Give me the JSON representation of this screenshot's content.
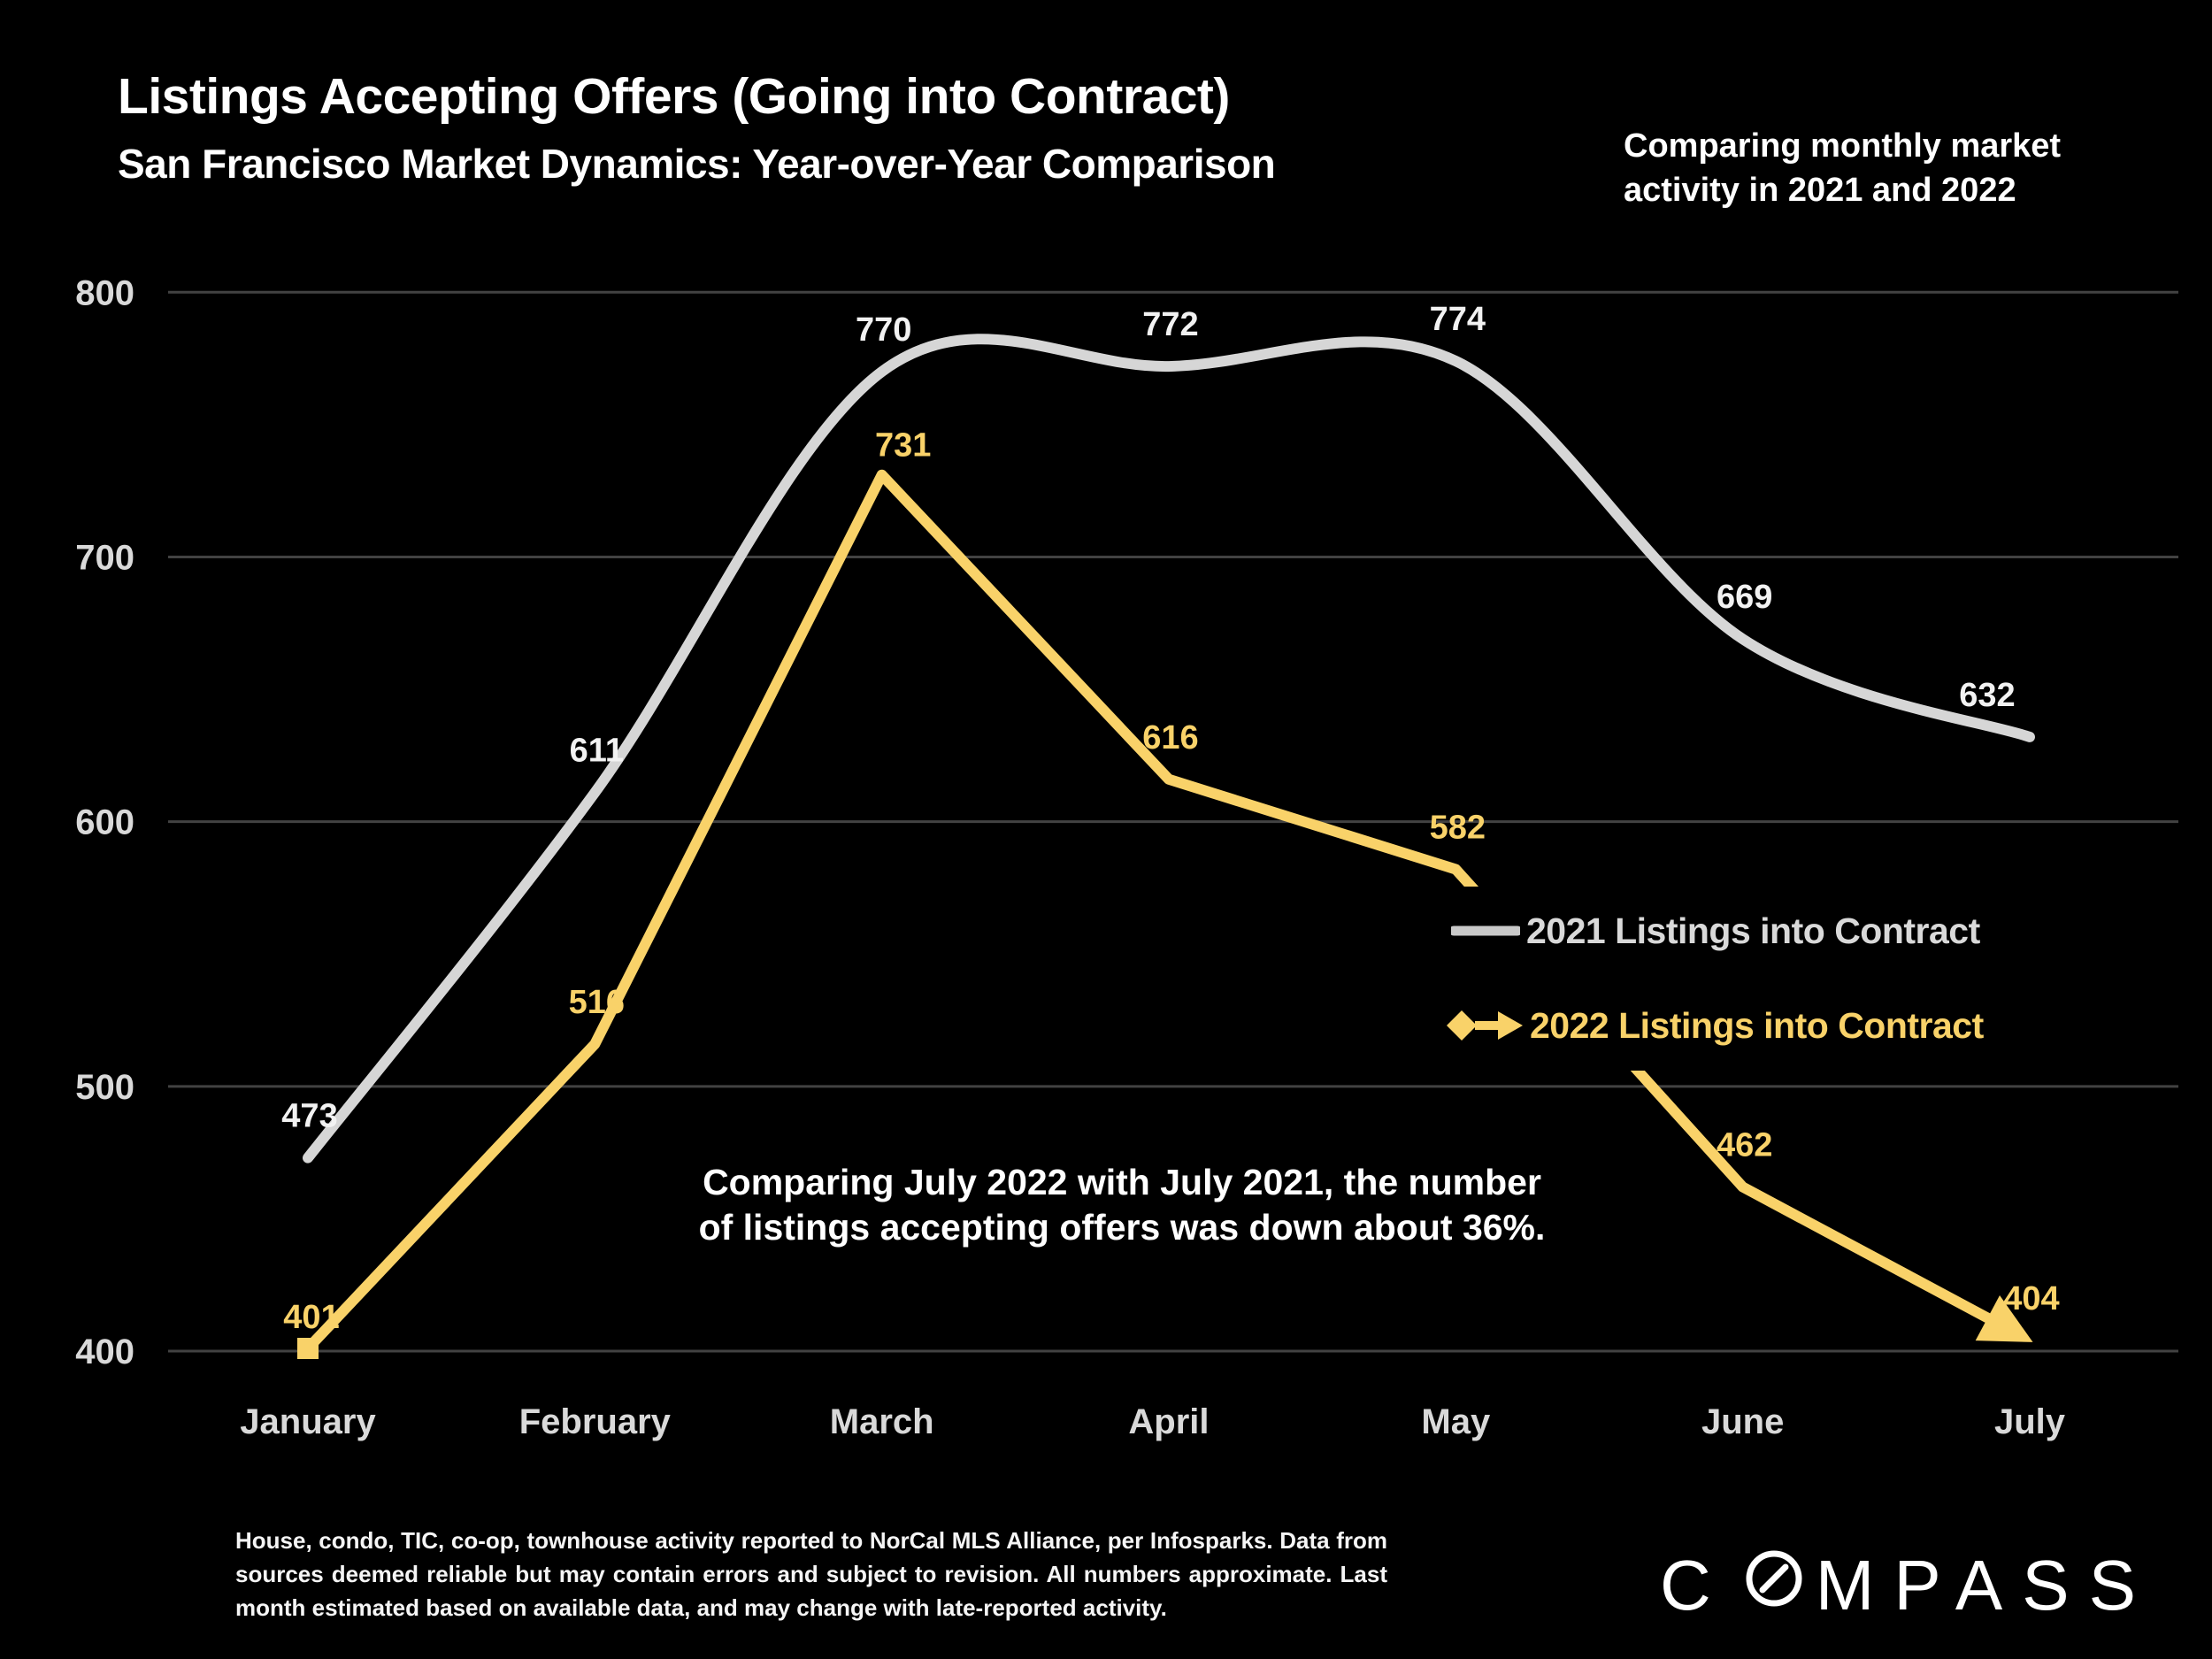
{
  "slide": {
    "title": "Listings Accepting Offers (Going into Contract)",
    "subtitle": "San Francisco Market Dynamics: Year-over-Year Comparison",
    "top_note_line1": "Comparing monthly market",
    "top_note_line2": "activity in 2021 and 2022",
    "annotation_line1": "Comparing July 2022 with July 2021, the number",
    "annotation_line2": "of listings accepting offers was down about 36%.",
    "footer": "House, condo, TIC, co-op, townhouse activity reported to NorCal MLS Alliance, per Infosparks. Data from sources deemed reliable but may contain errors and subject to revision. All numbers approximate. Last month estimated based on available data, and may change with late-reported activity.",
    "logo": {
      "text": "COMPASS",
      "prefix": "C",
      "suffix": "MPASS"
    },
    "colors": {
      "background": "#000000",
      "text_primary": "#ffffff",
      "axis_text": "#d9d9d9",
      "series_2021": "#d6d6d6",
      "series_2021_label": "#f2f2f2",
      "series_2022": "#f9d269",
      "gridline": "#424242"
    }
  },
  "chart_data": {
    "type": "line",
    "categories": [
      "January",
      "February",
      "March",
      "April",
      "May",
      "June",
      "July"
    ],
    "series": [
      {
        "name": "2021 Listings into Contract",
        "values": [
          473,
          611,
          770,
          772,
          774,
          669,
          632
        ],
        "color": "#d6d6d6",
        "label_color": "#f2f2f2",
        "style": "smooth",
        "begin_marker": "none",
        "end_marker": "none"
      },
      {
        "name": "2022 Listings into Contract",
        "values": [
          401,
          516,
          731,
          616,
          582,
          462,
          404
        ],
        "color": "#f9d269",
        "label_color": "#f9d269",
        "style": "straight",
        "begin_marker": "square",
        "end_marker": "arrow"
      }
    ],
    "ylim": [
      400,
      800
    ],
    "yticks": [
      400,
      500,
      600,
      700,
      800
    ],
    "grid": "horizontal",
    "legend_position": "middle-right",
    "data_labels": true
  }
}
